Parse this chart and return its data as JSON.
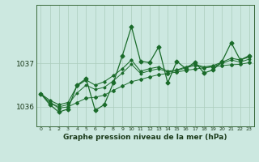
{
  "background_color": "#cce8e0",
  "plot_bg_color": "#cce8e0",
  "grid_color": "#aaccbb",
  "line_color": "#1a6b2a",
  "xlabel": "Graphe pression niveau de la mer (hPa)",
  "xlim_min": -0.5,
  "xlim_max": 23.5,
  "ylim_min": 1035.55,
  "ylim_max": 1038.35,
  "yticks": [
    1036,
    1037
  ],
  "xticks": [
    0,
    1,
    2,
    3,
    4,
    5,
    6,
    7,
    8,
    9,
    10,
    11,
    12,
    13,
    14,
    15,
    16,
    17,
    18,
    19,
    20,
    21,
    22,
    23
  ],
  "s1": [
    1036.3,
    1036.1,
    1035.97,
    1036.0,
    1036.1,
    1036.2,
    1036.22,
    1036.27,
    1036.38,
    1036.48,
    1036.58,
    1036.63,
    1036.69,
    1036.74,
    1036.77,
    1036.8,
    1036.84,
    1036.87,
    1036.9,
    1036.92,
    1036.95,
    1036.97,
    1036.98,
    1037.02
  ],
  "s2": [
    1036.3,
    1036.05,
    1035.88,
    1035.95,
    1036.5,
    1036.65,
    1035.92,
    1036.05,
    1036.55,
    1037.18,
    1037.85,
    1037.05,
    1037.02,
    1037.38,
    1036.55,
    1037.05,
    1036.88,
    1037.03,
    1036.78,
    1036.85,
    1037.05,
    1037.48,
    1037.08,
    1037.18
  ],
  "s3": [
    1036.3,
    1036.15,
    1036.05,
    1036.1,
    1036.48,
    1036.62,
    1036.5,
    1036.58,
    1036.72,
    1036.88,
    1037.08,
    1036.82,
    1036.88,
    1036.92,
    1036.82,
    1036.85,
    1036.92,
    1036.98,
    1036.92,
    1036.95,
    1037.03,
    1037.12,
    1037.08,
    1037.15
  ],
  "s4": [
    1036.3,
    1036.1,
    1036.0,
    1036.05,
    1036.32,
    1036.5,
    1036.4,
    1036.45,
    1036.6,
    1036.78,
    1036.98,
    1036.77,
    1036.83,
    1036.88,
    1036.8,
    1036.83,
    1036.9,
    1036.95,
    1036.9,
    1036.93,
    1037.0,
    1037.08,
    1037.03,
    1037.1
  ],
  "marker": "D",
  "markersize": 2.5,
  "linewidth": 0.9
}
